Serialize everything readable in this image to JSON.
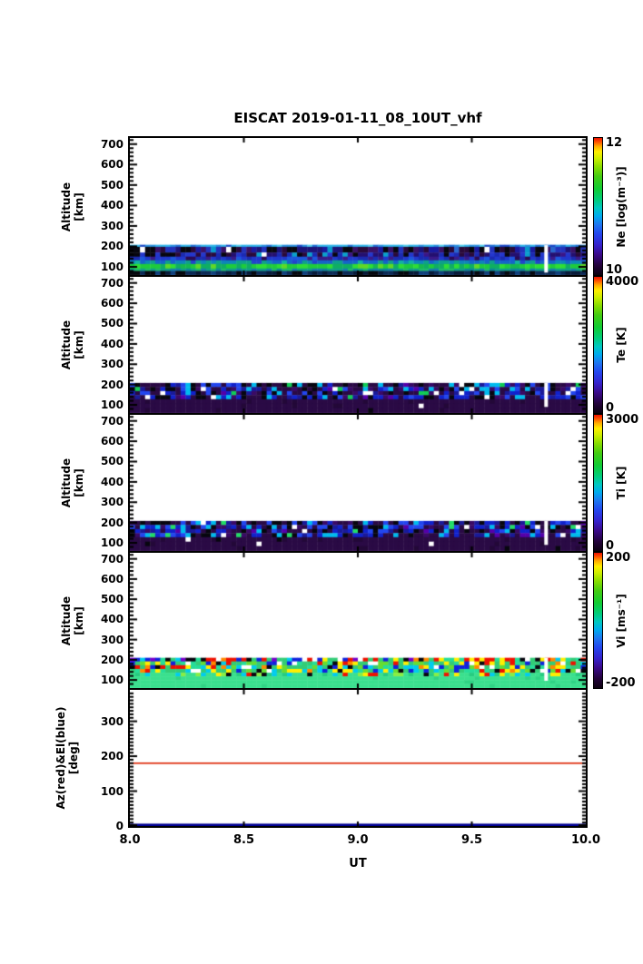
{
  "chart_data": {
    "type": "heatmap",
    "title": "EISCAT 2019-01-11_08_10UT_vhf",
    "background": "#ffffff",
    "axis_color": "#000000",
    "x": {
      "label": "UT",
      "range": [
        8.0,
        10.0
      ],
      "major_ticks": [
        8.0,
        8.5,
        9.0,
        9.5,
        10.0
      ],
      "tick_labels": [
        "8.0",
        "8.5",
        "9.0",
        "9.5",
        "10.0"
      ],
      "inner_ticks": [
        8.5,
        9.0,
        9.5
      ]
    },
    "altitude_range": [
      60,
      730
    ],
    "altitude_ticks": [
      700,
      600,
      500,
      400,
      300,
      200,
      100
    ],
    "altitude_minor_step": 20,
    "cols": 90,
    "cell_h": 4.6,
    "data_gap_ut": [
      9.818,
      9.834
    ],
    "colorbar_gradient": [
      [
        "#0c0110",
        0
      ],
      [
        "#23033a",
        0.07
      ],
      [
        "#3a0a8a",
        0.15
      ],
      [
        "#3522cc",
        0.22
      ],
      [
        "#2446ee",
        0.3
      ],
      [
        "#1e78f0",
        0.37
      ],
      [
        "#00aaee",
        0.43
      ],
      [
        "#00c8c0",
        0.49
      ],
      [
        "#00cc7a",
        0.55
      ],
      [
        "#11cc33",
        0.63
      ],
      [
        "#44cc11",
        0.72
      ],
      [
        "#88dd00",
        0.79
      ],
      [
        "#ccee00",
        0.85
      ],
      [
        "#ffee00",
        0.9
      ],
      [
        "#ffaa00",
        0.94
      ],
      [
        "#ff5500",
        0.97
      ],
      [
        "#ee1100",
        1
      ]
    ],
    "panels": [
      {
        "id": "ne",
        "kind": "heatmap",
        "seed": 7,
        "y_label_line1": "Altitude",
        "y_label_line2": "[km]",
        "colorbar": {
          "title": "Ne [log(m⁻³)]",
          "max_label": "12",
          "min_label": "10",
          "min": 10,
          "max": 12
        },
        "gap_alt": [
          72,
          206
        ],
        "layers": [
          {
            "alt": [
              198,
              208
            ],
            "palette": [
              [
                "#2fb3e8",
                50
              ],
              [
                "#2a8fdd",
                20
              ],
              [
                "#1f6fd4",
                15
              ],
              [
                "#52cdeb",
                10
              ],
              [
                "#1b49c8",
                5
              ]
            ]
          },
          {
            "alt": [
              170,
              198
            ],
            "left_black": 0.14,
            "palette": [
              [
                "#1d1478",
                20
              ],
              [
                "#2a0a3a",
                18
              ],
              [
                "#07060f",
                16
              ],
              [
                "#2333bb",
                14
              ],
              [
                "#3a1266",
                12
              ],
              [
                "#1a1a9e",
                9
              ],
              [
                "#2a66cc",
                5
              ],
              [
                "#ffffff",
                4
              ],
              [
                "#0899cc",
                2
              ]
            ]
          },
          {
            "alt": [
              150,
              170
            ],
            "left_black": 0.1,
            "palette": [
              [
                "#241070",
                26
              ],
              [
                "#1b2ab2",
                22
              ],
              [
                "#2a0a3a",
                16
              ],
              [
                "#2437cc",
                14
              ],
              [
                "#07060f",
                9
              ],
              [
                "#0aa0cc",
                6
              ],
              [
                "#ffffff",
                3
              ],
              [
                "#3a1688",
                4
              ]
            ]
          },
          {
            "alt": [
              132,
              150
            ],
            "palette": [
              [
                "#2137cc",
                40
              ],
              [
                "#1b2ab0",
                22
              ],
              [
                "#3a1a88",
                14
              ],
              [
                "#1d55dd",
                14
              ],
              [
                "#2a0a55",
                10
              ]
            ]
          },
          {
            "alt": [
              114,
              132
            ],
            "palette": [
              [
                "#1565c8",
                35
              ],
              [
                "#0e86b8",
                28
              ],
              [
                "#0fa08a",
                17
              ],
              [
                "#2244cc",
                12
              ],
              [
                "#11b2a0",
                8
              ]
            ]
          },
          {
            "alt": [
              92,
              114
            ],
            "palette": [
              [
                "#1ecb3c",
                46
              ],
              [
                "#2edd35",
                22
              ],
              [
                "#0fae62",
                16
              ],
              [
                "#5fd825",
                10
              ],
              [
                "#16b84e",
                6
              ]
            ]
          },
          {
            "alt": [
              80,
              92
            ],
            "palette": [
              [
                "#11a08a",
                38
              ],
              [
                "#157fae",
                24
              ],
              [
                "#1fbb6a",
                20
              ],
              [
                "#0d8899",
                18
              ]
            ]
          },
          {
            "alt": [
              62,
              80
            ],
            "palette": [
              [
                "#0c2a55",
                34
              ],
              [
                "#081a38",
                30
              ],
              [
                "#11407c",
                18
              ],
              [
                "#05070d",
                18
              ]
            ]
          }
        ]
      },
      {
        "id": "te",
        "kind": "heatmap",
        "seed": 13,
        "y_label_line1": "Altitude",
        "y_label_line2": "[km]",
        "colorbar": {
          "title": "Te [K]",
          "max_label": "4000",
          "min_label": "0",
          "min": 0,
          "max": 4000
        },
        "gap_alt": [
          90,
          208
        ],
        "layers": [
          {
            "alt": [
              128,
              208
            ],
            "palette": [
              [
                "#2a0a45",
                26
              ],
              [
                "#07060f",
                16
              ],
              [
                "#1122cc",
                14
              ],
              [
                "#2346ee",
                10
              ],
              [
                "#00bbee",
                10
              ],
              [
                "#3a0a66",
                9
              ],
              [
                "#1a1a99",
                6
              ],
              [
                "#11cc55",
                3
              ],
              [
                "#ffffff",
                4
              ],
              [
                "#5500aa",
                2
              ]
            ]
          },
          {
            "alt": [
              62,
              128
            ],
            "palette": [
              [
                "#2a0a45",
                90
              ],
              [
                "#230838",
                8
              ],
              [
                "#ffffff",
                1
              ],
              [
                "#07060f",
                1
              ]
            ]
          }
        ]
      },
      {
        "id": "ti",
        "kind": "heatmap",
        "seed": 29,
        "y_label_line1": "Altitude",
        "y_label_line2": "[km]",
        "colorbar": {
          "title": "Ti [K]",
          "max_label": "3000",
          "min_label": "0",
          "min": 0,
          "max": 3000
        },
        "gap_alt": [
          90,
          208
        ],
        "layers": [
          {
            "alt": [
              128,
              208
            ],
            "palette": [
              [
                "#2a0a45",
                25
              ],
              [
                "#07060f",
                16
              ],
              [
                "#1122cc",
                14
              ],
              [
                "#2346ee",
                10
              ],
              [
                "#00bbee",
                10
              ],
              [
                "#3a0a66",
                9
              ],
              [
                "#1a1a99",
                6
              ],
              [
                "#22dd66",
                4
              ],
              [
                "#ffffff",
                4
              ],
              [
                "#5500aa",
                2
              ]
            ]
          },
          {
            "alt": [
              62,
              128
            ],
            "palette": [
              [
                "#2a0a45",
                90
              ],
              [
                "#230838",
                8
              ],
              [
                "#ffffff",
                1
              ],
              [
                "#07060f",
                1
              ]
            ]
          }
        ]
      },
      {
        "id": "vi",
        "kind": "heatmap",
        "seed": 41,
        "y_label_line1": "Altitude",
        "y_label_line2": "[km]",
        "colorbar": {
          "title": "Vi [ms⁻¹]",
          "max_label": "200",
          "min_label": "-200",
          "min": -200,
          "max": 200
        },
        "gap_alt": [
          96,
          210
        ],
        "layers": [
          {
            "alt": [
              192,
              210
            ],
            "palette": [
              [
                "#33cc77",
                20
              ],
              [
                "#ee1100",
                13
              ],
              [
                "#07060f",
                12
              ],
              [
                "#1122dd",
                10
              ],
              [
                "#ffee00",
                8
              ],
              [
                "#00ccee",
                8
              ],
              [
                "#ffffff",
                6
              ],
              [
                "#ff8800",
                6
              ],
              [
                "#7700cc",
                5
              ],
              [
                "#26dd99",
                12
              ]
            ]
          },
          {
            "alt": [
              136,
              192
            ],
            "palette": [
              [
                "#33cc77",
                26
              ],
              [
                "#26dd99",
                12
              ],
              [
                "#00ccee",
                10
              ],
              [
                "#1122dd",
                9
              ],
              [
                "#ffee00",
                8
              ],
              [
                "#ee1100",
                8
              ],
              [
                "#07060f",
                8
              ],
              [
                "#ffffff",
                5
              ],
              [
                "#ff8800",
                5
              ],
              [
                "#66dd33",
                9
              ]
            ]
          },
          {
            "alt": [
              118,
              136
            ],
            "palette": [
              [
                "#3ae08e",
                50
              ],
              [
                "#26cc80",
                14
              ],
              [
                "#88ee44",
                8
              ],
              [
                "#00ccee",
                9
              ],
              [
                "#ffee00",
                6
              ],
              [
                "#ee1100",
                4
              ],
              [
                "#1122dd",
                4
              ],
              [
                "#07060f",
                5
              ]
            ]
          },
          {
            "alt": [
              62,
              118
            ],
            "palette": [
              [
                "#3ae08e",
                96
              ],
              [
                "#2fd484",
                4
              ]
            ]
          }
        ]
      },
      {
        "id": "azel",
        "kind": "lines",
        "y_label_line1": "Az(red)&El(blue)",
        "y_label_line2": "[deg]",
        "y_range": [
          0,
          390
        ],
        "y_ticks": [
          0,
          100,
          200,
          300
        ],
        "y_minor_step": 10,
        "series": [
          {
            "name": "Az",
            "color": "#dd2200",
            "value": 180,
            "thickness": 1.6
          },
          {
            "name": "El",
            "color": "#000090",
            "value": 0,
            "thickness": 2.6
          }
        ]
      }
    ]
  }
}
